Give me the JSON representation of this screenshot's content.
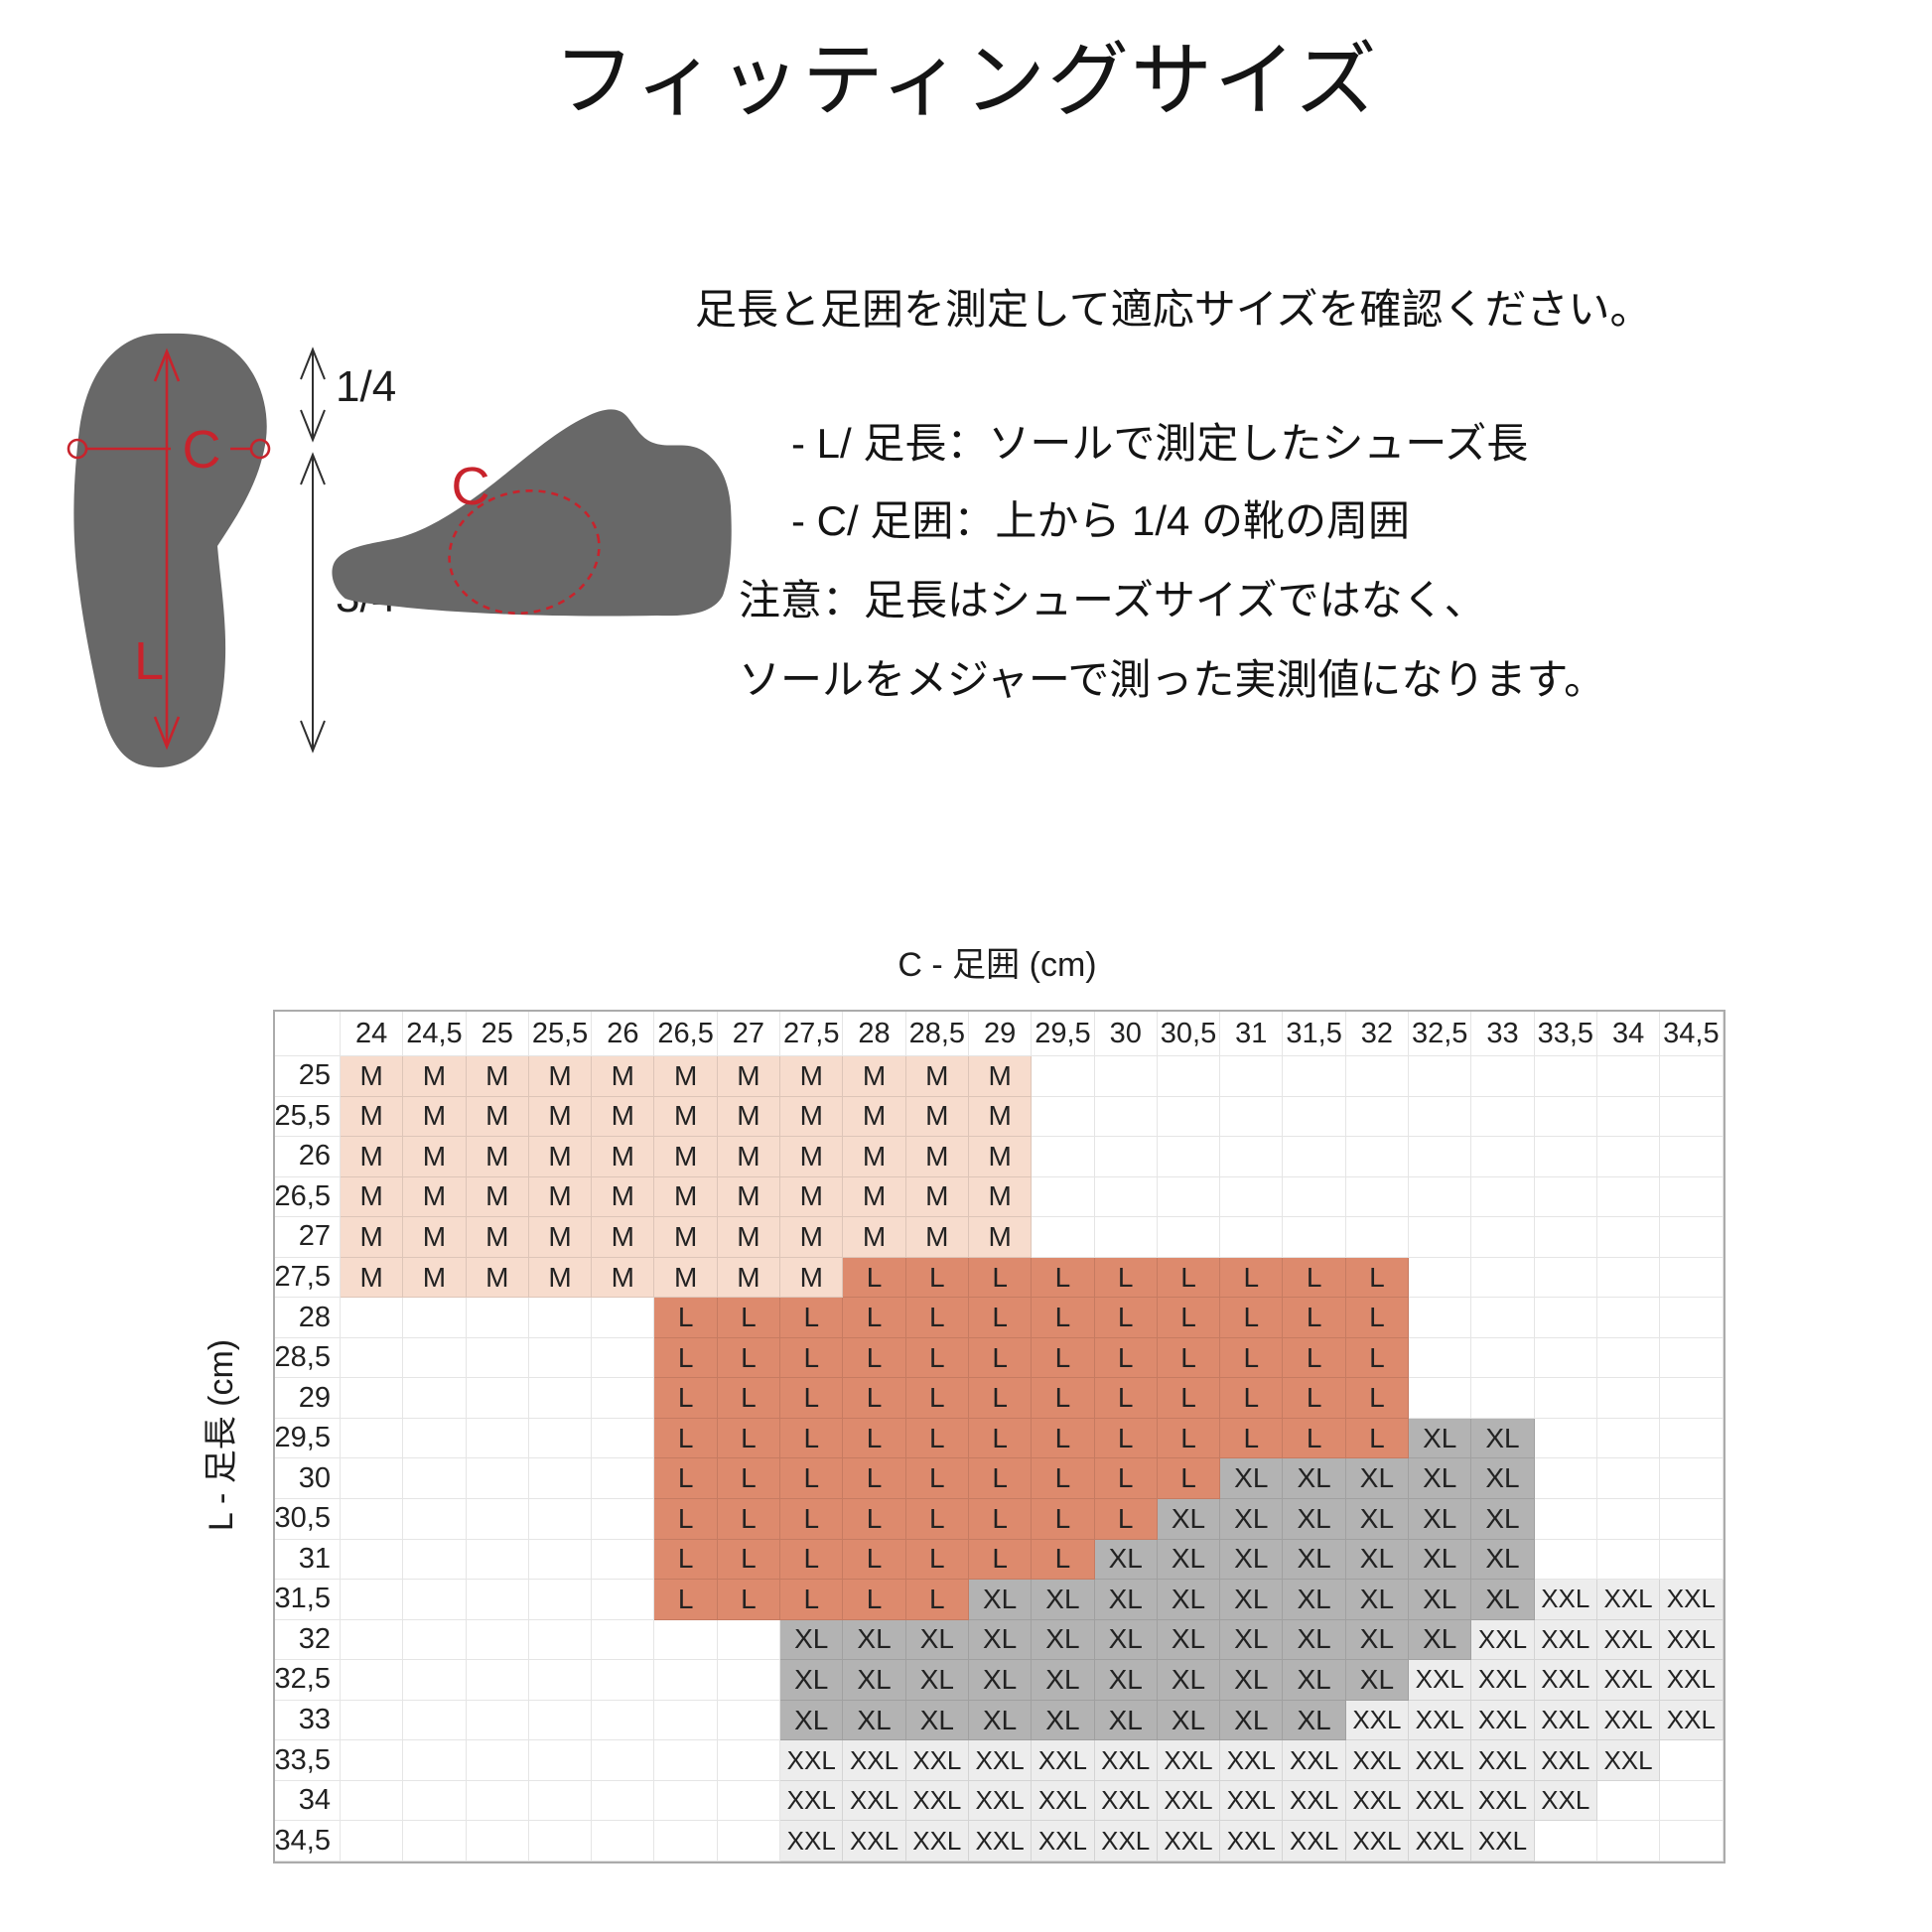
{
  "title": "フィッティングサイズ",
  "instructions": {
    "intro": "足長と足囲を測定して適応サイズを確認ください。",
    "bullet_l": "- L/ 足長：ソールで測定したシューズ長",
    "bullet_c": "- C/ 足囲：上から 1/4 の靴の周囲",
    "note_1": "注意：足長はシューズサイズではなく、",
    "note_2": "ソールをメジャーで測った実測値になります。"
  },
  "diagram": {
    "sole_length_label": "L",
    "sole_girth_label": "C",
    "fraction_top": "1/4",
    "fraction_bottom": "3/4",
    "shoe_girth_label": "C"
  },
  "chart_data": {
    "type": "heatmap",
    "title": "フィッティングサイズ",
    "col_axis_title": "C - 足囲 (cm)",
    "row_axis_title": "L - 足長 (cm)",
    "columns": [
      "24",
      "24,5",
      "25",
      "25,5",
      "26",
      "26,5",
      "27",
      "27,5",
      "28",
      "28,5",
      "29",
      "29,5",
      "30",
      "30,5",
      "31",
      "31,5",
      "32",
      "32,5",
      "33",
      "33,5",
      "34",
      "34,5"
    ],
    "legend": {
      "M": "#f7dccd",
      "L": "#dd8a6d",
      "XL": "#b3b3b3",
      "XXL": "#ededed"
    },
    "rows": [
      {
        "label": "25",
        "cells": [
          "M",
          "M",
          "M",
          "M",
          "M",
          "M",
          "M",
          "M",
          "M",
          "M",
          "M",
          "",
          "",
          "",
          "",
          "",
          "",
          "",
          "",
          "",
          "",
          ""
        ]
      },
      {
        "label": "25,5",
        "cells": [
          "M",
          "M",
          "M",
          "M",
          "M",
          "M",
          "M",
          "M",
          "M",
          "M",
          "M",
          "",
          "",
          "",
          "",
          "",
          "",
          "",
          "",
          "",
          "",
          ""
        ]
      },
      {
        "label": "26",
        "cells": [
          "M",
          "M",
          "M",
          "M",
          "M",
          "M",
          "M",
          "M",
          "M",
          "M",
          "M",
          "",
          "",
          "",
          "",
          "",
          "",
          "",
          "",
          "",
          "",
          ""
        ]
      },
      {
        "label": "26,5",
        "cells": [
          "M",
          "M",
          "M",
          "M",
          "M",
          "M",
          "M",
          "M",
          "M",
          "M",
          "M",
          "",
          "",
          "",
          "",
          "",
          "",
          "",
          "",
          "",
          "",
          ""
        ]
      },
      {
        "label": "27",
        "cells": [
          "M",
          "M",
          "M",
          "M",
          "M",
          "M",
          "M",
          "M",
          "M",
          "M",
          "M",
          "",
          "",
          "",
          "",
          "",
          "",
          "",
          "",
          "",
          "",
          ""
        ]
      },
      {
        "label": "27,5",
        "cells": [
          "M",
          "M",
          "M",
          "M",
          "M",
          "M",
          "M",
          "M",
          "L",
          "L",
          "L",
          "L",
          "L",
          "L",
          "L",
          "L",
          "L",
          "",
          "",
          "",
          "",
          ""
        ]
      },
      {
        "label": "28",
        "cells": [
          "",
          "",
          "",
          "",
          "",
          "L",
          "L",
          "L",
          "L",
          "L",
          "L",
          "L",
          "L",
          "L",
          "L",
          "L",
          "L",
          "",
          "",
          "",
          "",
          ""
        ]
      },
      {
        "label": "28,5",
        "cells": [
          "",
          "",
          "",
          "",
          "",
          "L",
          "L",
          "L",
          "L",
          "L",
          "L",
          "L",
          "L",
          "L",
          "L",
          "L",
          "L",
          "",
          "",
          "",
          "",
          ""
        ]
      },
      {
        "label": "29",
        "cells": [
          "",
          "",
          "",
          "",
          "",
          "L",
          "L",
          "L",
          "L",
          "L",
          "L",
          "L",
          "L",
          "L",
          "L",
          "L",
          "L",
          "",
          "",
          "",
          "",
          ""
        ]
      },
      {
        "label": "29,5",
        "cells": [
          "",
          "",
          "",
          "",
          "",
          "L",
          "L",
          "L",
          "L",
          "L",
          "L",
          "L",
          "L",
          "L",
          "L",
          "L",
          "L",
          "XL",
          "XL",
          "",
          "",
          ""
        ]
      },
      {
        "label": "30",
        "cells": [
          "",
          "",
          "",
          "",
          "",
          "L",
          "L",
          "L",
          "L",
          "L",
          "L",
          "L",
          "L",
          "L",
          "XL",
          "XL",
          "XL",
          "XL",
          "XL",
          "",
          "",
          ""
        ]
      },
      {
        "label": "30,5",
        "cells": [
          "",
          "",
          "",
          "",
          "",
          "L",
          "L",
          "L",
          "L",
          "L",
          "L",
          "L",
          "L",
          "XL",
          "XL",
          "XL",
          "XL",
          "XL",
          "XL",
          "",
          "",
          ""
        ]
      },
      {
        "label": "31",
        "cells": [
          "",
          "",
          "",
          "",
          "",
          "L",
          "L",
          "L",
          "L",
          "L",
          "L",
          "L",
          "XL",
          "XL",
          "XL",
          "XL",
          "XL",
          "XL",
          "XL",
          "",
          "",
          ""
        ]
      },
      {
        "label": "31,5",
        "cells": [
          "",
          "",
          "",
          "",
          "",
          "L",
          "L",
          "L",
          "L",
          "L",
          "XL",
          "XL",
          "XL",
          "XL",
          "XL",
          "XL",
          "XL",
          "XL",
          "XL",
          "XXL",
          "XXL",
          "XXL"
        ]
      },
      {
        "label": "32",
        "cells": [
          "",
          "",
          "",
          "",
          "",
          "",
          "",
          "XL",
          "XL",
          "XL",
          "XL",
          "XL",
          "XL",
          "XL",
          "XL",
          "XL",
          "XL",
          "XL",
          "XXL",
          "XXL",
          "XXL",
          "XXL"
        ]
      },
      {
        "label": "32,5",
        "cells": [
          "",
          "",
          "",
          "",
          "",
          "",
          "",
          "XL",
          "XL",
          "XL",
          "XL",
          "XL",
          "XL",
          "XL",
          "XL",
          "XL",
          "XL",
          "XXL",
          "XXL",
          "XXL",
          "XXL",
          "XXL"
        ]
      },
      {
        "label": "33",
        "cells": [
          "",
          "",
          "",
          "",
          "",
          "",
          "",
          "XL",
          "XL",
          "XL",
          "XL",
          "XL",
          "XL",
          "XL",
          "XL",
          "XL",
          "XXL",
          "XXL",
          "XXL",
          "XXL",
          "XXL",
          "XXL"
        ]
      },
      {
        "label": "33,5",
        "cells": [
          "",
          "",
          "",
          "",
          "",
          "",
          "",
          "XXL",
          "XXL",
          "XXL",
          "XXL",
          "XXL",
          "XXL",
          "XXL",
          "XXL",
          "XXL",
          "XXL",
          "XXL",
          "XXL",
          "XXL",
          "XXL",
          ""
        ]
      },
      {
        "label": "34",
        "cells": [
          "",
          "",
          "",
          "",
          "",
          "",
          "",
          "XXL",
          "XXL",
          "XXL",
          "XXL",
          "XXL",
          "XXL",
          "XXL",
          "XXL",
          "XXL",
          "XXL",
          "XXL",
          "XXL",
          "XXL",
          "",
          ""
        ]
      },
      {
        "label": "34,5",
        "cells": [
          "",
          "",
          "",
          "",
          "",
          "",
          "",
          "XXL",
          "XXL",
          "XXL",
          "XXL",
          "XXL",
          "XXL",
          "XXL",
          "XXL",
          "XXL",
          "XXL",
          "XXL",
          "XXL",
          "",
          "",
          ""
        ]
      }
    ]
  },
  "theme": {
    "m": "#f7dccd",
    "l": "#dd8a6d",
    "xl": "#b3b3b3",
    "xxl": "#ededed",
    "silhouette": "#686868",
    "red": "#c8232c"
  }
}
